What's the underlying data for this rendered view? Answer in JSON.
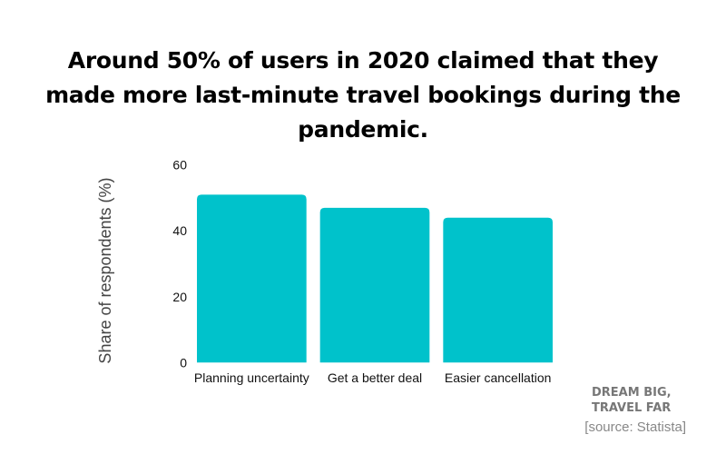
{
  "chart_data": {
    "type": "bar",
    "title": "Around 50% of users in 2020 claimed that they made more last-minute travel bookings during the pandemic.",
    "categories": [
      "Planning uncertainty",
      "Get a better deal",
      "Easier cancellation"
    ],
    "values": [
      51,
      47,
      44
    ],
    "xlabel": "",
    "ylabel": "Share of respondents (%)",
    "ylim": [
      0,
      60
    ],
    "yticks": [
      "0",
      "20",
      "40",
      "60"
    ],
    "grid": false,
    "color": "#00c2cb"
  },
  "branding": {
    "line1": "DREAM BIG,",
    "line2": "TRAVEL FAR"
  },
  "source": "[source: Statista]"
}
